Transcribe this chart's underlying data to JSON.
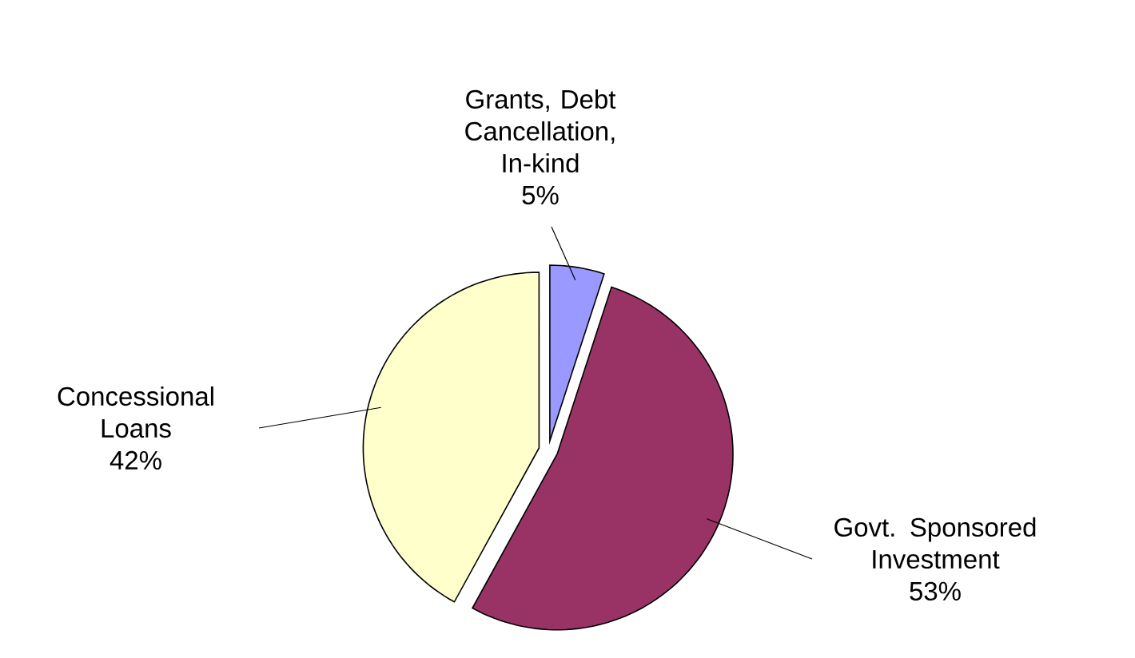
{
  "chart_data": {
    "type": "pie",
    "categories": [
      "Grants, Debt Cancellation, In-kind",
      "Govt. Sponsored Investment",
      "Concessional Loans"
    ],
    "values": [
      5,
      53,
      42
    ],
    "value_labels": [
      "5%",
      "53%",
      "42%"
    ],
    "colors": [
      "#9999ff",
      "#993366",
      "#ffffcc"
    ]
  }
}
